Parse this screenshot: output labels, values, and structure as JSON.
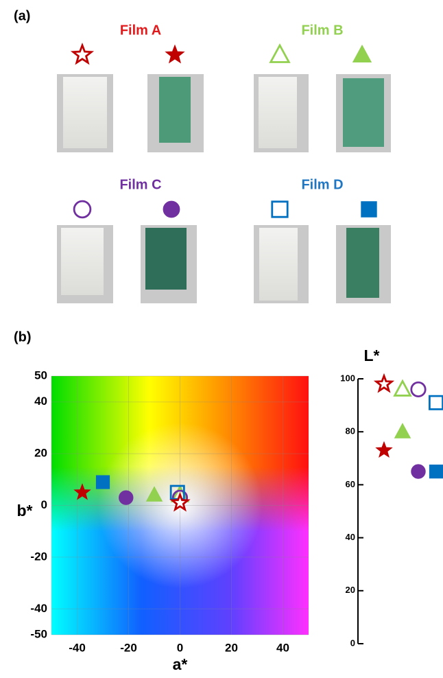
{
  "panel_a": {
    "label": "(a)",
    "films": [
      {
        "name": "Film A",
        "color": "#e31a1c"
      },
      {
        "name": "Film B",
        "color": "#92d050"
      },
      {
        "name": "Film C",
        "color": "#7030a0"
      },
      {
        "name": "Film D",
        "color": "#1f77c4"
      }
    ]
  },
  "panel_b": {
    "label": "(b)"
  },
  "chart_data": [
    {
      "type": "scatter",
      "xlabel": "a*",
      "ylabel": "b*",
      "xlim": [
        -50,
        50
      ],
      "ylim": [
        -50,
        50
      ],
      "xticks": [
        -40,
        -20,
        0,
        20,
        40
      ],
      "yticks": [
        -50,
        -40,
        -20,
        0,
        20,
        40,
        50
      ],
      "grid": true,
      "series": [
        {
          "color": "#c00000",
          "marker": "star",
          "filled": [
            false,
            true
          ],
          "x": [
            0,
            -38
          ],
          "values": [
            1,
            5
          ]
        },
        {
          "color": "#92d050",
          "marker": "triangle",
          "filled": [
            false,
            true
          ],
          "x": [
            0,
            -10
          ],
          "values": [
            4,
            4
          ]
        },
        {
          "color": "#7030a0",
          "marker": "circle",
          "filled": [
            false,
            true
          ],
          "x": [
            0,
            -21
          ],
          "values": [
            3,
            3
          ]
        },
        {
          "color": "#0070c0",
          "marker": "square",
          "filled": [
            false,
            true
          ],
          "x": [
            -1,
            -30
          ],
          "values": [
            5,
            9
          ]
        }
      ]
    },
    {
      "type": "strip",
      "ylabel": "L*",
      "ylim": [
        0,
        100
      ],
      "yticks": [
        0,
        20,
        40,
        60,
        80,
        100
      ],
      "series": [
        {
          "color": "#c00000",
          "marker": "star",
          "filled": [
            false,
            true
          ],
          "values": [
            98,
            73
          ]
        },
        {
          "color": "#92d050",
          "marker": "triangle",
          "filled": [
            false,
            true
          ],
          "values": [
            96,
            80
          ]
        },
        {
          "color": "#7030a0",
          "marker": "circle",
          "filled": [
            false,
            true
          ],
          "values": [
            96,
            65
          ]
        },
        {
          "color": "#0070c0",
          "marker": "square",
          "filled": [
            false,
            true
          ],
          "values": [
            91,
            65
          ]
        }
      ]
    }
  ]
}
